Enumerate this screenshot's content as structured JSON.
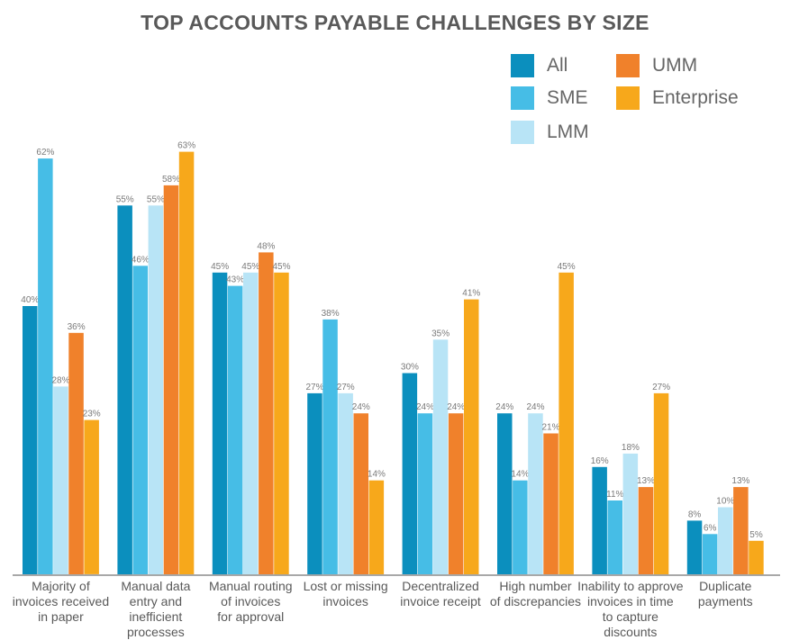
{
  "chart_data": {
    "type": "bar",
    "title": "TOP ACCOUNTS PAYABLE CHALLENGES BY SIZE",
    "xlabel": "",
    "ylabel": "",
    "ylim": [
      0,
      65
    ],
    "grid": false,
    "legend_position": "top-right",
    "value_suffix": "%",
    "categories": [
      "Majority of\ninvoices received\nin paper",
      "Manual data\nentry and\ninefficient processes",
      "Manual routing\nof invoices\nfor approval",
      "Lost or missing\ninvoices",
      "Decentralized\ninvoice receipt",
      "High number\nof discrepancies",
      "Inability to approve\ninvoices in time\nto capture discounts",
      "Duplicate\npayments"
    ],
    "series": [
      {
        "name": "All",
        "color": "#0B8FBE",
        "values": [
          40,
          55,
          45,
          27,
          30,
          24,
          16,
          8
        ]
      },
      {
        "name": "SME",
        "color": "#46BDE6",
        "values": [
          62,
          46,
          43,
          38,
          24,
          14,
          11,
          6
        ]
      },
      {
        "name": "LMM",
        "color": "#B8E4F6",
        "values": [
          28,
          55,
          45,
          27,
          35,
          24,
          18,
          10
        ]
      },
      {
        "name": "UMM",
        "color": "#F0812B",
        "values": [
          36,
          58,
          48,
          24,
          24,
          21,
          13,
          13
        ]
      },
      {
        "name": "Enterprise",
        "color": "#F7A81B",
        "values": [
          23,
          63,
          45,
          14,
          41,
          45,
          27,
          5
        ]
      }
    ]
  }
}
